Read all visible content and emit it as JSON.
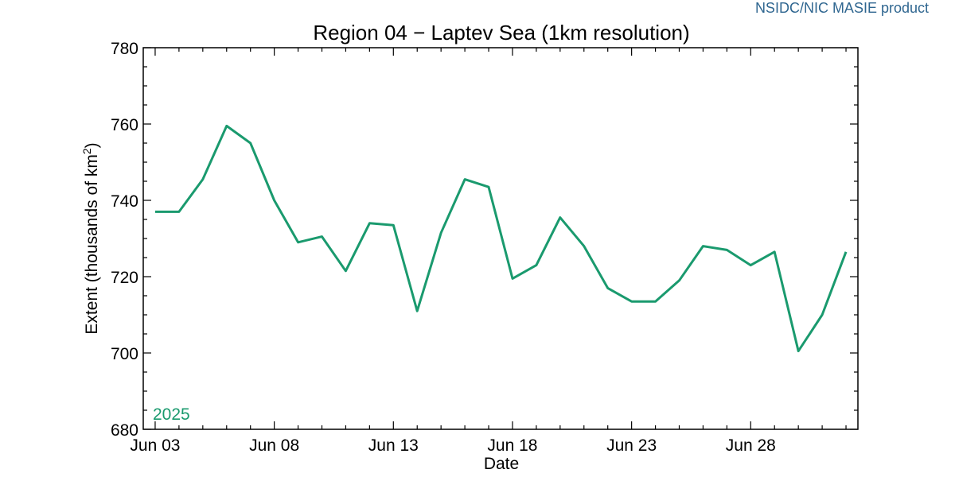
{
  "credit": "NSIDC/NIC MASIE product",
  "colors": {
    "series": "#1a9a6e",
    "axis": "#000000",
    "credit": "#2f6690"
  },
  "chart_data": {
    "type": "line",
    "title": "Region 04 − Laptev Sea (1km resolution)",
    "xlabel": "Date",
    "ylabel": "Extent (thousands of km²)",
    "ylabel_main": "Extent (thousands of km",
    "ylabel_sup": "2",
    "ylabel_end": ")",
    "ylim": [
      680,
      780
    ],
    "yticks": [
      680,
      700,
      720,
      740,
      760,
      780
    ],
    "xlim_days": [
      2.5,
      32.5
    ],
    "xtick_labels": [
      {
        "day": 3,
        "label": "Jun 03"
      },
      {
        "day": 8,
        "label": "Jun 08"
      },
      {
        "day": 13,
        "label": "Jun 13"
      },
      {
        "day": 18,
        "label": "Jun 18"
      },
      {
        "day": 23,
        "label": "Jun 23"
      },
      {
        "day": 28,
        "label": "Jun 28"
      }
    ],
    "grid": false,
    "series": [
      {
        "name": "2025",
        "x": [
          "Jun 03",
          "Jun 04",
          "Jun 05",
          "Jun 06",
          "Jun 07",
          "Jun 08",
          "Jun 09",
          "Jun 10",
          "Jun 11",
          "Jun 12",
          "Jun 13",
          "Jun 14",
          "Jun 15",
          "Jun 16",
          "Jun 17",
          "Jun 18",
          "Jun 19",
          "Jun 20",
          "Jun 21",
          "Jun 22",
          "Jun 23",
          "Jun 24",
          "Jun 25",
          "Jun 26",
          "Jun 27",
          "Jun 28",
          "Jun 29",
          "Jun 30",
          "Jul 01",
          "Jul 02"
        ],
        "values": [
          737,
          737,
          745.5,
          759.5,
          755,
          740,
          729,
          730.5,
          721.5,
          734,
          733.5,
          711,
          731.5,
          745.5,
          743.5,
          719.5,
          723,
          735.5,
          728,
          717,
          713.5,
          713.5,
          719,
          728,
          727,
          723,
          726.5,
          700.5,
          710,
          726.5
        ]
      }
    ]
  }
}
